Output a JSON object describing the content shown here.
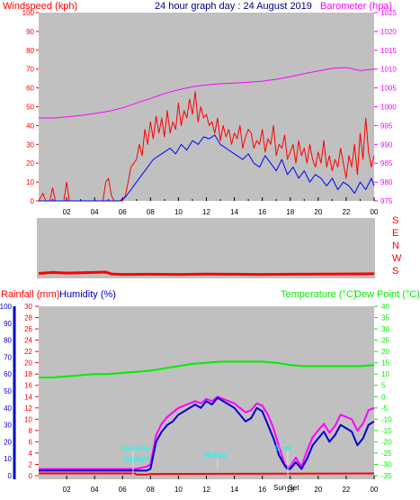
{
  "header": {
    "title": "24 hour graph day : 24 August 2019",
    "windspeed_label": "Windspeed (kph)",
    "barometer_label": "Barometer (hpa)"
  },
  "lower_header": {
    "rainfall_label": "Rainfall (mm)",
    "humidity_label": "Humidity (%)",
    "temperature_label": "Temperature (°C)",
    "dewpoint_label": "Dew Point (°C)"
  },
  "direction_axis": [
    "S",
    "E",
    "N",
    "W",
    "S"
  ],
  "x_tick_labels": [
    "02",
    "04",
    "06",
    "08",
    "10",
    "12",
    "14",
    "16",
    "18",
    "20",
    "22",
    "00"
  ],
  "annotations": {
    "sun_rise": "Sun Rise",
    "daylight": "Daylight",
    "midday": "Midday",
    "dusk": "Dusk",
    "sun_set": "Sun Set"
  },
  "colors": {
    "background": "#ffffff",
    "plot": "#c0c0c0",
    "windspeed": "#ff0000",
    "gust": "#ff0000",
    "wind_avg": "#0000ff",
    "barometer": "#ff00ff",
    "humidity": "#0000cc",
    "temperature": "#00ee00",
    "dewpoint": "#ff00ff",
    "rainfall": "#ff0000",
    "annotation": "#00ffff",
    "title": "#000080"
  },
  "chart_data": [
    {
      "type": "line",
      "title": "24 hour graph day : 24 August 2019",
      "xlabel": "",
      "ylabel": "Windspeed (kph)",
      "y2label": "Barometer (hpa)",
      "x_range_hours": [
        0,
        24
      ],
      "ylim": [
        0,
        100
      ],
      "y_ticks": [
        0,
        10,
        20,
        30,
        40,
        50,
        60,
        70,
        80,
        90,
        100
      ],
      "y2lim": [
        975,
        1025
      ],
      "y2_ticks": [
        975,
        980,
        985,
        990,
        995,
        1000,
        1005,
        1010,
        1015,
        1020,
        1025
      ],
      "grid": false,
      "series": [
        {
          "name": "Windspeed (kph)",
          "axis": "left",
          "x": [
            0,
            0.3,
            0.5,
            0.6,
            0.8,
            1.0,
            1.2,
            1.4,
            1.6,
            1.8,
            2.0,
            2.2,
            2.4,
            2.6,
            2.8,
            3.0,
            3.2,
            3.4,
            3.6,
            3.8,
            4.0,
            4.2,
            4.4,
            4.6,
            4.8,
            5.0,
            5.2,
            5.4,
            5.6,
            5.8,
            6.0,
            6.2,
            6.4,
            6.6,
            6.8,
            7.0,
            7.2,
            7.4,
            7.6,
            7.8,
            8.0,
            8.2,
            8.4,
            8.6,
            8.8,
            9.0,
            9.2,
            9.4,
            9.6,
            9.8,
            10.0,
            10.2,
            10.4,
            10.6,
            10.8,
            11.0,
            11.2,
            11.4,
            11.6,
            11.8,
            12.0,
            12.2,
            12.4,
            12.6,
            12.8,
            13.0,
            13.2,
            13.4,
            13.6,
            13.8,
            14.0,
            14.2,
            14.4,
            14.6,
            14.8,
            15.0,
            15.2,
            15.4,
            15.6,
            15.8,
            16.0,
            16.2,
            16.4,
            16.6,
            16.8,
            17.0,
            17.2,
            17.4,
            17.6,
            17.8,
            18.0,
            18.2,
            18.4,
            18.6,
            18.8,
            19.0,
            19.2,
            19.4,
            19.6,
            19.8,
            20.0,
            20.2,
            20.4,
            20.6,
            20.8,
            21.0,
            21.2,
            21.4,
            21.6,
            21.8,
            22.0,
            22.2,
            22.4,
            22.6,
            22.8,
            23.0,
            23.2,
            23.4,
            23.6,
            23.8,
            24.0
          ],
          "values": [
            0,
            4,
            0,
            0,
            0,
            7,
            0,
            0,
            0,
            0,
            10,
            0,
            0,
            0,
            0,
            0,
            0,
            0,
            0,
            0,
            0,
            0,
            0,
            0,
            10,
            12,
            3,
            0,
            0,
            0,
            0,
            3,
            10,
            18,
            20,
            22,
            30,
            24,
            38,
            30,
            42,
            33,
            45,
            36,
            44,
            34,
            48,
            36,
            42,
            38,
            52,
            40,
            48,
            44,
            54,
            46,
            58,
            42,
            50,
            44,
            46,
            40,
            42,
            36,
            44,
            32,
            40,
            34,
            38,
            30,
            36,
            33,
            40,
            28,
            34,
            38,
            36,
            28,
            32,
            30,
            38,
            26,
            33,
            30,
            40,
            24,
            30,
            28,
            35,
            22,
            26,
            30,
            20,
            32,
            24,
            28,
            20,
            30,
            22,
            18,
            26,
            20,
            32,
            18,
            24,
            16,
            22,
            18,
            28,
            20,
            12,
            24,
            18,
            30,
            14,
            36,
            22,
            44,
            26,
            18,
            24
          ]
        },
        {
          "name": "Average windspeed",
          "axis": "left",
          "x": [
            0,
            2,
            4,
            5.8,
            6.2,
            6.6,
            7.0,
            7.4,
            7.8,
            8.2,
            8.6,
            9.0,
            9.4,
            9.8,
            10.2,
            10.6,
            11.0,
            11.4,
            11.8,
            12.2,
            12.6,
            13.0,
            13.4,
            13.8,
            14.2,
            14.6,
            15.0,
            15.4,
            15.8,
            16.2,
            16.6,
            17.0,
            17.4,
            17.8,
            18.2,
            18.6,
            19.0,
            19.4,
            19.8,
            20.2,
            20.6,
            21.0,
            21.4,
            21.8,
            22.2,
            22.6,
            23.0,
            23.4,
            23.8,
            24.0
          ],
          "values": [
            0,
            0,
            0,
            0,
            2,
            6,
            10,
            14,
            18,
            22,
            24,
            26,
            28,
            25,
            30,
            27,
            32,
            30,
            34,
            33,
            35,
            30,
            28,
            26,
            24,
            22,
            25,
            20,
            18,
            24,
            20,
            16,
            22,
            14,
            18,
            12,
            16,
            10,
            14,
            12,
            8,
            12,
            6,
            10,
            8,
            4,
            10,
            6,
            12,
            8
          ]
        },
        {
          "name": "Barometer (hpa)",
          "axis": "right",
          "x": [
            0,
            1,
            2,
            3,
            4,
            5,
            6,
            7,
            8,
            9,
            10,
            11,
            12,
            13,
            14,
            15,
            16,
            17,
            18,
            19,
            20,
            21,
            22,
            23,
            24
          ],
          "values": [
            997,
            997,
            997.3,
            997.7,
            998.2,
            998.8,
            999.7,
            1001,
            1002.2,
            1003.5,
            1004.5,
            1005.3,
            1005.8,
            1006.1,
            1006.3,
            1006.5,
            1006.8,
            1007.3,
            1008,
            1008.8,
            1009.5,
            1010.2,
            1010.4,
            1009.6,
            1010
          ]
        }
      ]
    },
    {
      "type": "line",
      "title": "",
      "ylabel": "",
      "y_categories": [
        "S",
        "E",
        "N",
        "W",
        "S"
      ],
      "ylim": [
        0,
        360
      ],
      "x_range_hours": [
        0,
        24
      ],
      "series": [
        {
          "name": "Wind direction",
          "x": [
            0,
            1,
            2,
            3,
            4,
            4.8,
            5.2,
            6,
            8,
            10,
            12,
            14,
            16,
            18,
            20,
            22,
            24
          ],
          "values": [
            8,
            14,
            10,
            12,
            14,
            16,
            5,
            2,
            3,
            2,
            4,
            3,
            2,
            3,
            4,
            5,
            6
          ]
        }
      ]
    },
    {
      "type": "line",
      "title": "",
      "ylabel": "Rainfall (mm)",
      "y2label": "Humidity (%)",
      "y3label": "Temperature (°C)",
      "y4label": "Dew Point (°C)",
      "x_range_hours": [
        0,
        24
      ],
      "rainfall_ylim": [
        0,
        30
      ],
      "rainfall_ticks": [
        0,
        2,
        4,
        6,
        8,
        10,
        12,
        14,
        16,
        18,
        20,
        22,
        24,
        26,
        28,
        30
      ],
      "humidity_ylim": [
        0,
        100
      ],
      "humidity_ticks": [
        0,
        10,
        20,
        30,
        40,
        50,
        60,
        70,
        80,
        90,
        100
      ],
      "temperature_ylim": [
        -35,
        40
      ],
      "temperature_ticks": [
        -35,
        -30,
        -25,
        -20,
        -15,
        -10,
        -5,
        0,
        5,
        10,
        15,
        20,
        25,
        30,
        35,
        40
      ],
      "series": [
        {
          "name": "Rainfall (mm)",
          "axis": "rainfall",
          "x": [
            0,
            6.9,
            7.0,
            7.8,
            8.0,
            24
          ],
          "values": [
            0.4,
            0.4,
            0.2,
            0.2,
            0.3,
            0.4
          ]
        },
        {
          "name": "Humidity (%)",
          "axis": "humidity",
          "x": [
            0,
            7,
            7.7,
            8.0,
            8.4,
            8.8,
            9.2,
            9.6,
            10.0,
            10.4,
            10.8,
            11.2,
            11.6,
            12.0,
            12.4,
            12.8,
            13.2,
            13.6,
            14.0,
            14.4,
            14.8,
            15.2,
            15.6,
            16.0,
            16.4,
            16.8,
            17.2,
            17.6,
            17.8,
            18.0,
            18.4,
            18.8,
            19.2,
            19.6,
            20.0,
            20.4,
            20.8,
            21.2,
            21.6,
            22.0,
            22.4,
            22.8,
            23.2,
            23.6,
            24.0
          ],
          "values": [
            3,
            3,
            3,
            4,
            20,
            26,
            30,
            32,
            36,
            38,
            40,
            42,
            40,
            44,
            42,
            46,
            44,
            42,
            40,
            36,
            32,
            34,
            40,
            38,
            30,
            22,
            12,
            6,
            4,
            4,
            8,
            4,
            10,
            18,
            22,
            26,
            20,
            24,
            30,
            28,
            26,
            18,
            22,
            30,
            32
          ]
        },
        {
          "name": "Temperature (°C)",
          "axis": "temperature",
          "x": [
            0,
            1,
            2,
            3,
            4,
            5,
            6,
            7,
            8,
            9,
            10,
            11,
            12,
            13,
            14,
            15,
            16,
            17,
            18,
            19,
            20,
            21,
            22,
            23,
            24
          ],
          "values": [
            8.5,
            8.5,
            9,
            9.5,
            10,
            10,
            10.5,
            11,
            11.5,
            12.5,
            13.5,
            14.5,
            15,
            15.5,
            15.5,
            15.5,
            15.5,
            15,
            14,
            13.5,
            13.5,
            13.5,
            13.5,
            13.5,
            14
          ]
        },
        {
          "name": "Dew Point (°C)",
          "axis": "temperature",
          "x": [
            0,
            7,
            7.7,
            8.0,
            8.4,
            8.8,
            9.2,
            9.6,
            10.0,
            10.4,
            10.8,
            11.2,
            11.6,
            12.0,
            12.4,
            12.8,
            13.2,
            13.6,
            14.0,
            14.4,
            14.8,
            15.2,
            15.6,
            16.0,
            16.4,
            16.8,
            17.2,
            17.6,
            17.8,
            18.0,
            18.4,
            18.8,
            19.2,
            19.6,
            20.0,
            20.4,
            20.8,
            21.2,
            21.6,
            22.0,
            22.4,
            22.8,
            23.2,
            23.6,
            24.0
          ],
          "values": [
            -32,
            -32,
            -31,
            -30,
            -17,
            -12,
            -9,
            -7,
            -5,
            -4,
            -3,
            -2,
            -3,
            -1,
            -2,
            0,
            -1,
            -2,
            -3,
            -5,
            -7,
            -6,
            -3,
            -4,
            -8,
            -14,
            -22,
            -30,
            -31,
            -31,
            -27,
            -31,
            -24,
            -18,
            -15,
            -12,
            -16,
            -13,
            -8,
            -9,
            -10,
            -15,
            -12,
            -6,
            -5
          ]
        }
      ]
    }
  ]
}
